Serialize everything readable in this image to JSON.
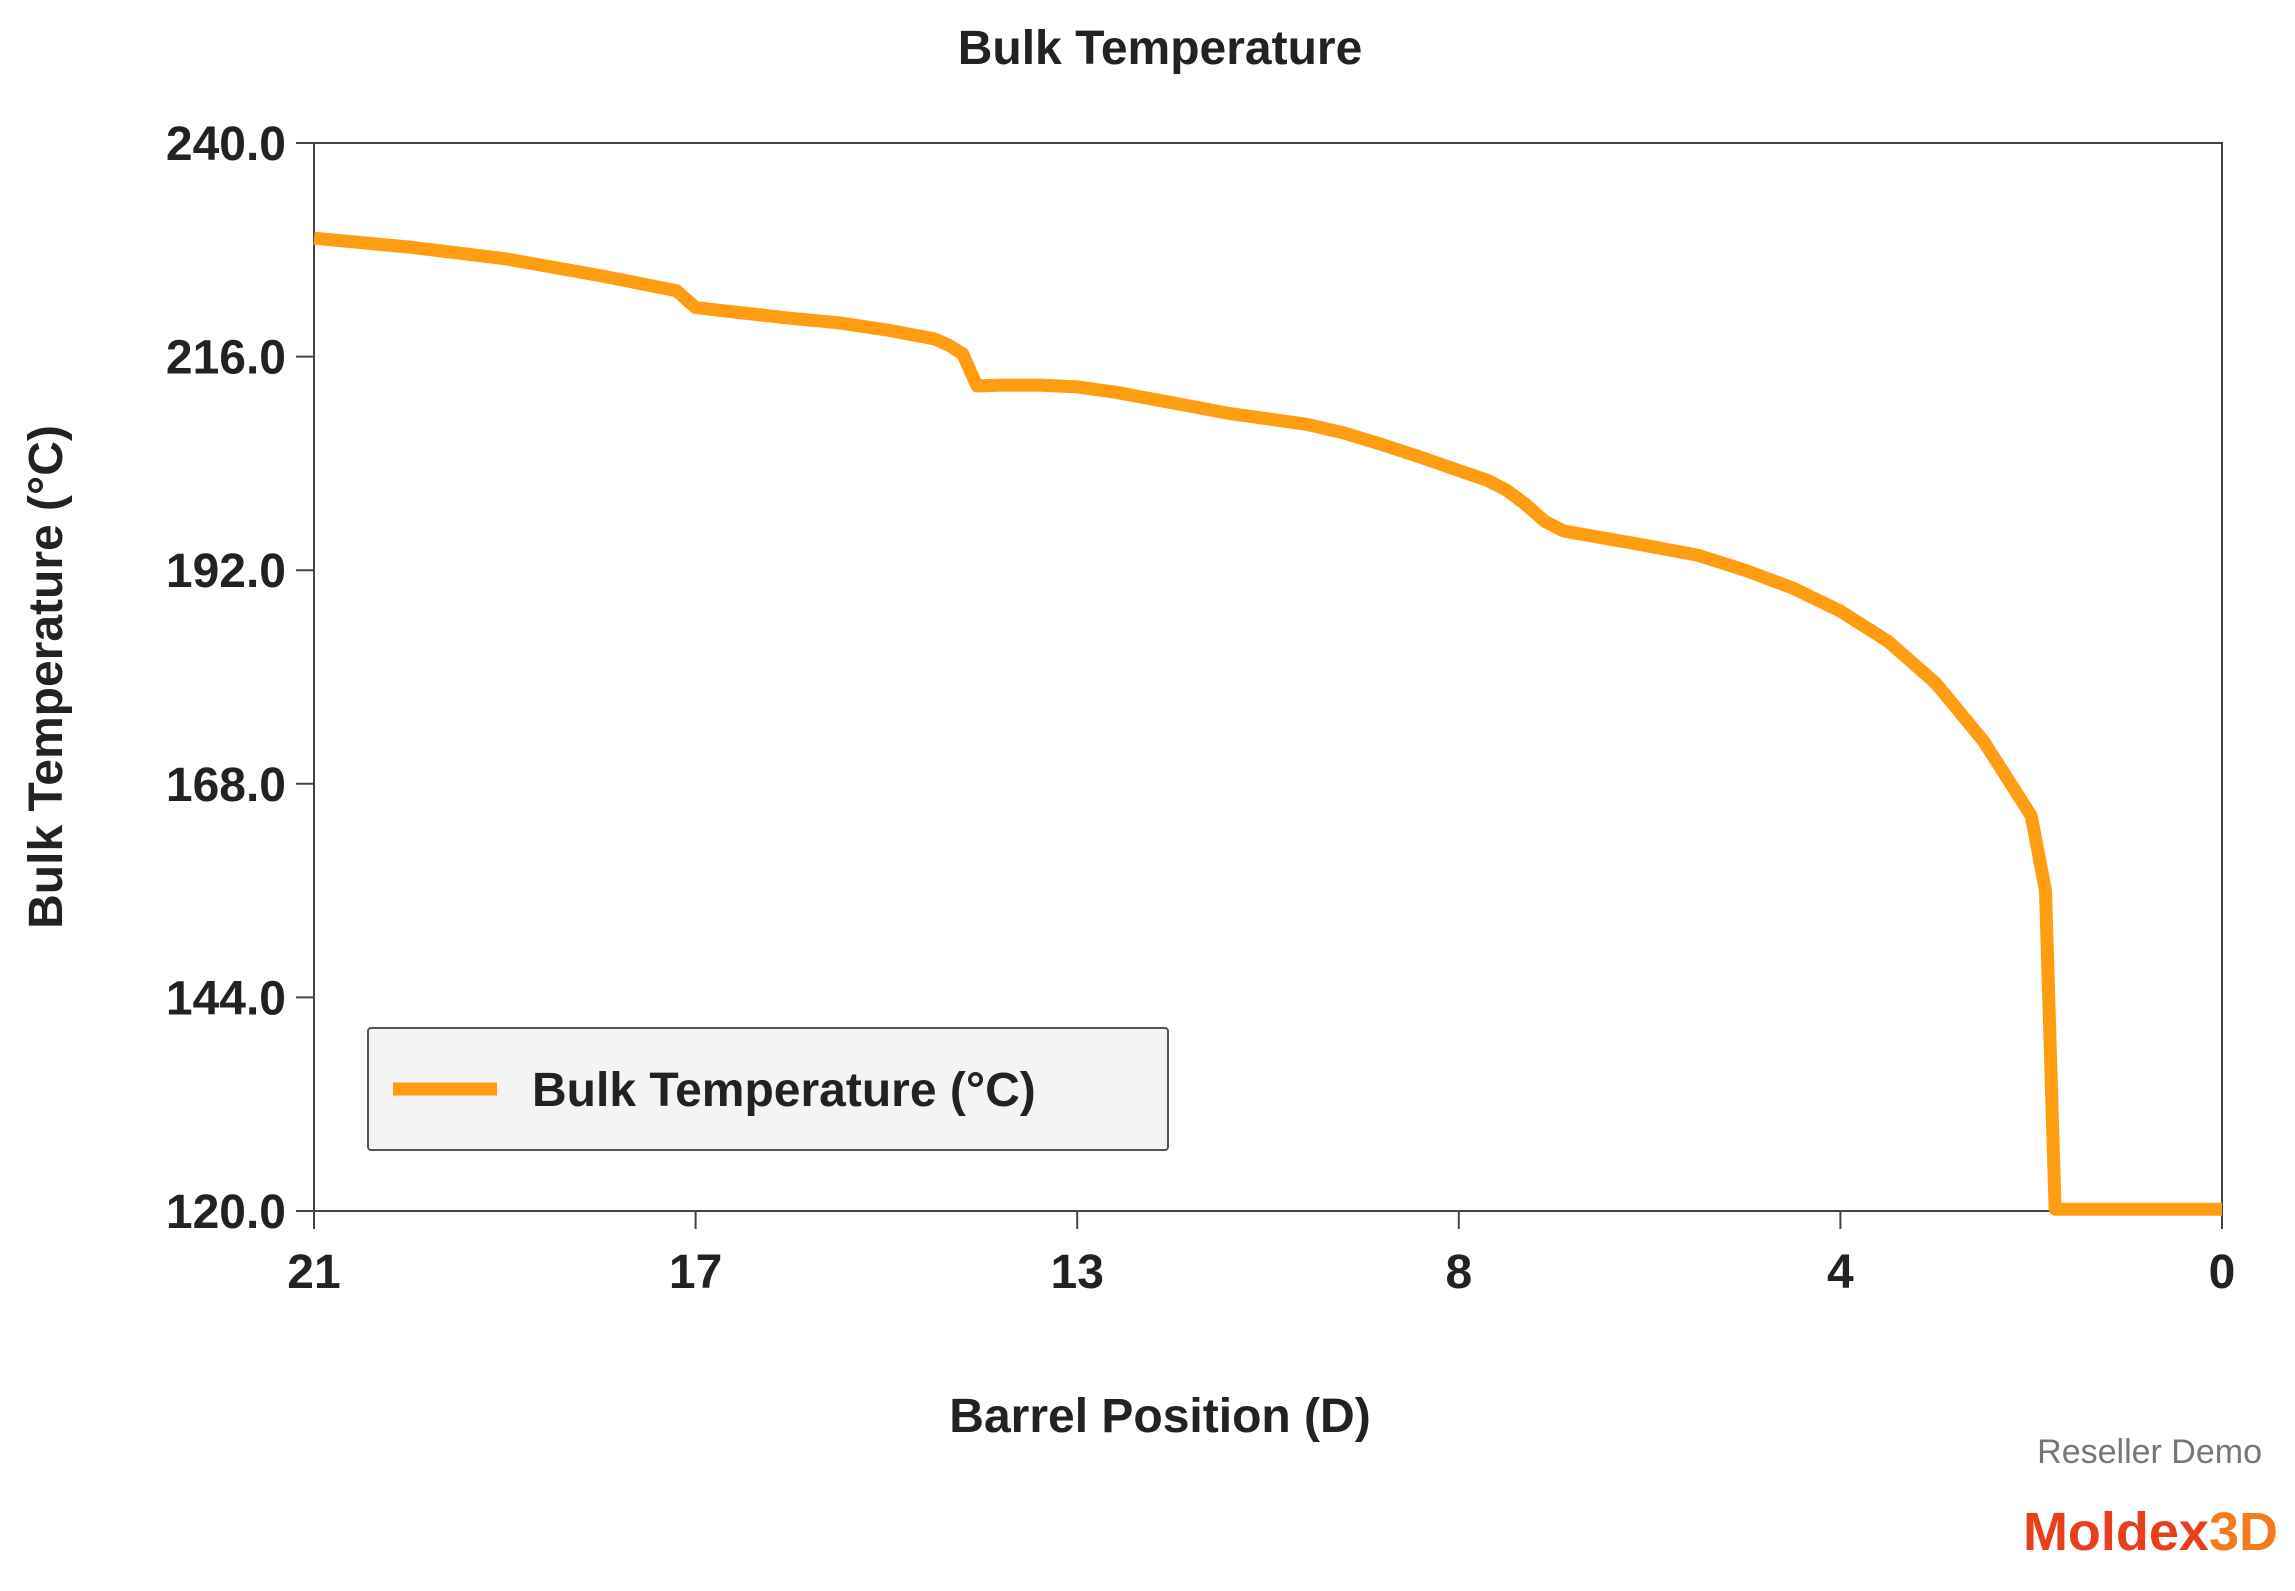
{
  "chart_data": {
    "type": "line",
    "title": "Bulk Temperature",
    "xlabel": "Barrel Position (D)",
    "ylabel": "Bulk Temperature (°C)",
    "x_ticks": [
      "21",
      "17",
      "13",
      "8",
      "4",
      "0"
    ],
    "y_ticks": [
      "240.0",
      "216.0",
      "192.0",
      "168.0",
      "144.0",
      "120.0"
    ],
    "ylim": [
      120,
      240
    ],
    "x_reversed": true,
    "grid": false,
    "legend_position": "bottom-left",
    "series": [
      {
        "name": "Bulk Temperature (°C)",
        "color": "#FF9D12",
        "points": [
          [
            21.0,
            229.3
          ],
          [
            20.0,
            228.3
          ],
          [
            19.0,
            227.0
          ],
          [
            18.0,
            225.1
          ],
          [
            17.2,
            223.4
          ],
          [
            17.0,
            221.5
          ],
          [
            16.5,
            220.9
          ],
          [
            16.0,
            220.3
          ],
          [
            15.5,
            219.8
          ],
          [
            15.0,
            219.0
          ],
          [
            14.5,
            218.0
          ],
          [
            14.35,
            217.3
          ],
          [
            14.2,
            216.3
          ],
          [
            14.05,
            212.7
          ],
          [
            13.8,
            212.8
          ],
          [
            13.4,
            212.8
          ],
          [
            13.0,
            212.6
          ],
          [
            12.5,
            212.0
          ],
          [
            12.0,
            211.2
          ],
          [
            11.5,
            210.4
          ],
          [
            11.0,
            209.6
          ],
          [
            10.0,
            208.4
          ],
          [
            9.5,
            207.4
          ],
          [
            9.0,
            206.1
          ],
          [
            8.5,
            204.7
          ],
          [
            8.0,
            203.2
          ],
          [
            7.7,
            202.1
          ],
          [
            7.5,
            201.0
          ],
          [
            7.3,
            199.4
          ],
          [
            7.1,
            197.5
          ],
          [
            6.9,
            196.4
          ],
          [
            6.0,
            194.7
          ],
          [
            5.5,
            193.7
          ],
          [
            5.0,
            192.0
          ],
          [
            4.5,
            190.0
          ],
          [
            4.0,
            187.4
          ],
          [
            3.5,
            184.0
          ],
          [
            3.0,
            179.3
          ],
          [
            2.5,
            172.8
          ],
          [
            2.0,
            164.4
          ],
          [
            1.85,
            156.0
          ],
          [
            1.75,
            120.2
          ],
          [
            1.5,
            120.2
          ],
          [
            1.0,
            120.2
          ],
          [
            0.5,
            120.2
          ],
          [
            0.0,
            120.2
          ]
        ]
      }
    ]
  },
  "watermark": {
    "reseller": "Reseller Demo",
    "brand_main": "Moldex",
    "brand_accent": "3D",
    "brand_main_color": "#E8401C",
    "brand_accent_color": "#F47A20"
  }
}
